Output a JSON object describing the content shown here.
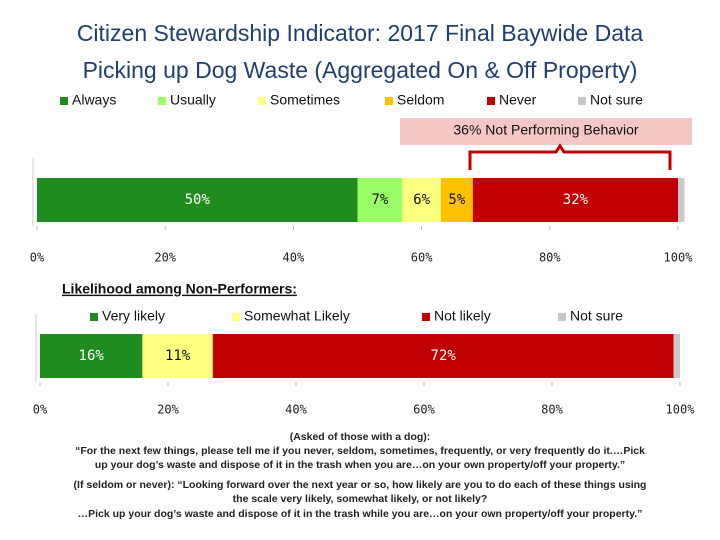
{
  "chart_data": [
    {
      "type": "stacked-bar",
      "orientation": "horizontal",
      "title": "Citizen Stewardship Indicator: 2017 Final Baywide Data",
      "subtitle": "Picking up Dog Waste (Aggregated On & Off Property)",
      "annotation": "36% Not Performing Behavior",
      "categories": [
        null
      ],
      "series": [
        {
          "name": "Always",
          "color": "#1e8c1e",
          "values": [
            50
          ],
          "value_labels": [
            "50%"
          ]
        },
        {
          "name": "Usually",
          "color": "#99ff66",
          "values": [
            7
          ],
          "value_labels": [
            "7%"
          ]
        },
        {
          "name": "Sometimes",
          "color": "#ffff80",
          "values": [
            6
          ],
          "value_labels": [
            "6%"
          ]
        },
        {
          "name": "Seldom",
          "color": "#ffc000",
          "values": [
            5
          ],
          "value_labels": [
            "5%"
          ]
        },
        {
          "name": "Never",
          "color": "#c00000",
          "values": [
            32
          ],
          "value_labels": [
            "32%"
          ]
        },
        {
          "name": "Not sure",
          "color": "#c8c8c8",
          "values": [
            1
          ],
          "value_labels": [
            null
          ]
        }
      ],
      "xlim": [
        0,
        100
      ],
      "xticks": [
        {
          "value": 0,
          "label": "0%"
        },
        {
          "value": 20,
          "label": "20%"
        },
        {
          "value": 40,
          "label": "40%"
        },
        {
          "value": 60,
          "label": "60%"
        },
        {
          "value": 80,
          "label": "80%"
        },
        {
          "value": 100,
          "label": "100%"
        }
      ]
    },
    {
      "type": "stacked-bar",
      "orientation": "horizontal",
      "title": "Likelihood among Non-Performers:",
      "categories": [
        null
      ],
      "series": [
        {
          "name": "Very likely",
          "color": "#1e8c1e",
          "values": [
            16
          ],
          "value_labels": [
            "16%"
          ]
        },
        {
          "name": "Somewhat Likely",
          "color": "#ffff80",
          "values": [
            11
          ],
          "value_labels": [
            "11%"
          ]
        },
        {
          "name": "Not likely",
          "color": "#c00000",
          "values": [
            72
          ],
          "value_labels": [
            "72%"
          ]
        },
        {
          "name": "Not sure",
          "color": "#c8c8c8",
          "values": [
            1
          ],
          "value_labels": [
            null
          ]
        }
      ],
      "xlim": [
        0,
        100
      ],
      "xticks": [
        {
          "value": 0,
          "label": "0%"
        },
        {
          "value": 20,
          "label": "20%"
        },
        {
          "value": 40,
          "label": "40%"
        },
        {
          "value": 60,
          "label": "60%"
        },
        {
          "value": 80,
          "label": "80%"
        },
        {
          "value": 100,
          "label": "100%"
        }
      ]
    }
  ],
  "notes": [
    "(Asked of those with a dog):",
    "“For the next few things, please tell me if you never, seldom, sometimes, frequently, or very frequently do it.…Pick",
    "up your dog’s waste and dispose of it in the trash when you are…on your own property/off your property.”",
    "(If seldom or never): “Looking forward over the next year or so, how likely are you to do each of these things using",
    "the scale very likely, somewhat likely, or not likely?",
    "…Pick up your dog’s waste and dispose of it in the trash while you are…on your own property/off your property.”"
  ]
}
